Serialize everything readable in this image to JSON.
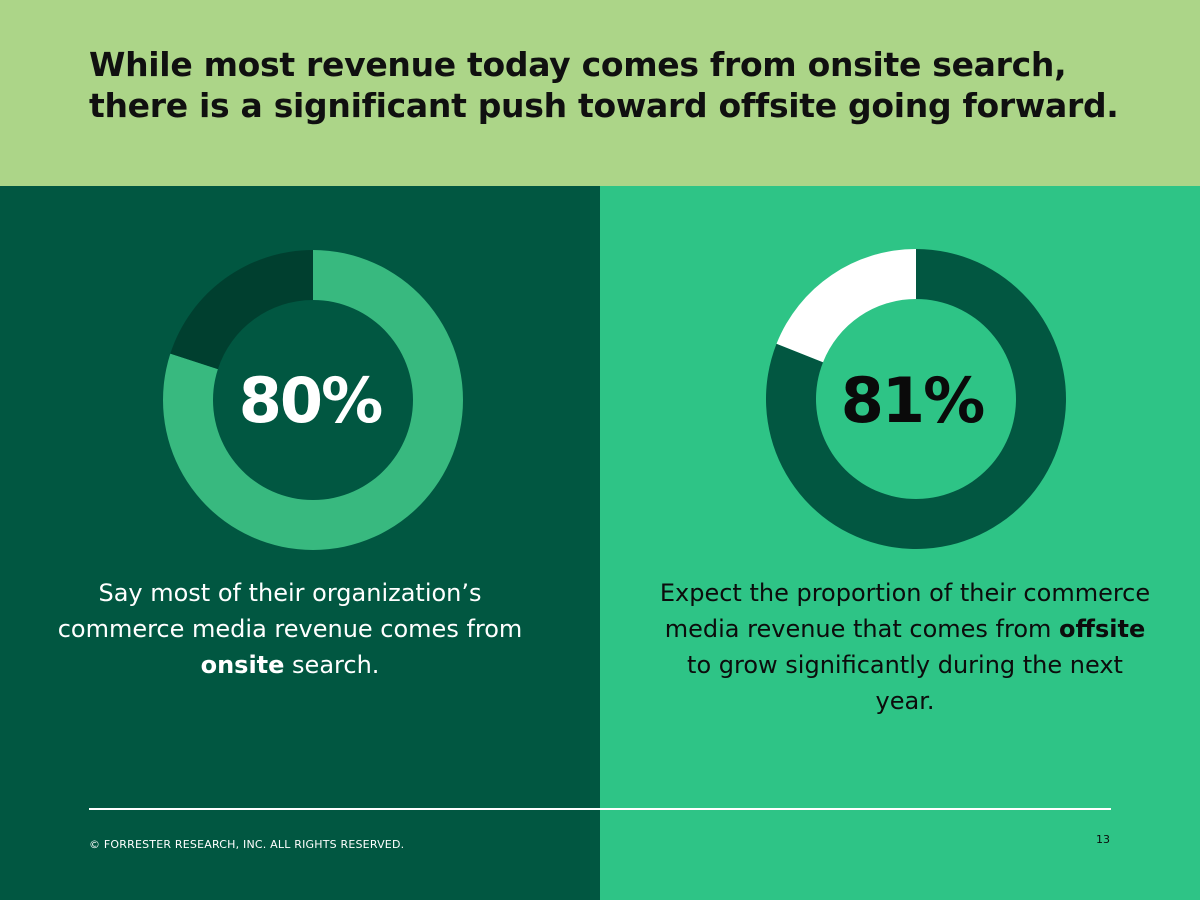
{
  "header": {
    "title_line1": "While most revenue today comes from onsite search,",
    "title_line2": "there is a significant push toward offsite going forward.",
    "background": "#acd588"
  },
  "chart_data": [
    {
      "type": "pie",
      "variant": "donut",
      "values": [
        80,
        20
      ],
      "colors": [
        "#38b97f",
        "#003f2f"
      ],
      "center_label": "80%",
      "caption_parts": [
        "Say most of their organization’s commerce media revenue comes from ",
        "onsite",
        " search."
      ],
      "panel_color": "#015741"
    },
    {
      "type": "pie",
      "variant": "donut",
      "values": [
        81,
        19
      ],
      "colors": [
        "#025741",
        "#ffffff"
      ],
      "center_label": "81%",
      "caption_parts": [
        "Expect the proportion of their commerce media revenue that comes from ",
        "offsite",
        " to grow significantly during the next year."
      ],
      "panel_color": "#2ec486"
    }
  ],
  "footer": {
    "copyright": "© FORRESTER RESEARCH, INC. ALL RIGHTS RESERVED.",
    "page_number": "13"
  }
}
